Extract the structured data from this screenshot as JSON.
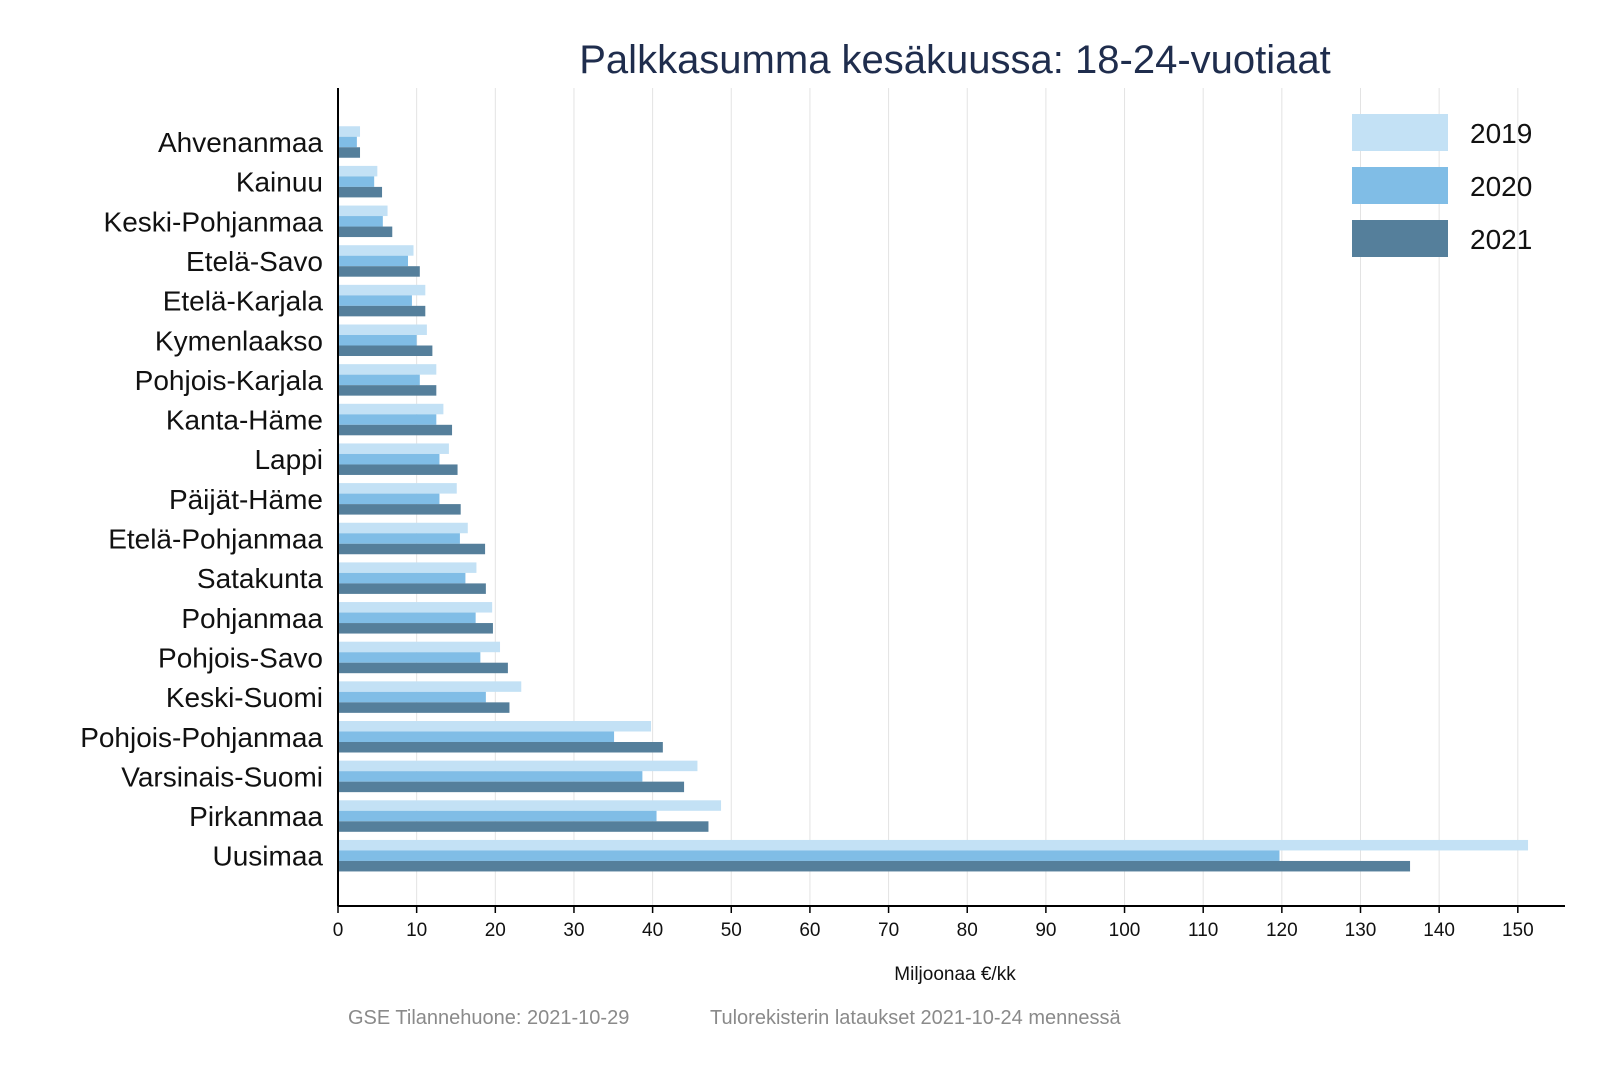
{
  "chart_data": {
    "type": "bar",
    "orientation": "horizontal",
    "title": "Palkkasumma kesäkuussa: 18-24-vuotiaat",
    "xlabel": "Miljoonaa €/kk",
    "ylabel": "",
    "xlim": [
      0,
      156
    ],
    "xticks": [
      0,
      10,
      20,
      30,
      40,
      50,
      60,
      70,
      80,
      90,
      100,
      110,
      120,
      130,
      140,
      150
    ],
    "grid": "vertical",
    "legend_position": "top-right",
    "categories": [
      "Ahvenanmaa",
      "Kainuu",
      "Keski-Pohjanmaa",
      "Etelä-Savo",
      "Etelä-Karjala",
      "Kymenlaakso",
      "Pohjois-Karjala",
      "Kanta-Häme",
      "Lappi",
      "Päijät-Häme",
      "Etelä-Pohjanmaa",
      "Satakunta",
      "Pohjanmaa",
      "Pohjois-Savo",
      "Keski-Suomi",
      "Pohjois-Pohjanmaa",
      "Varsinais-Suomi",
      "Pirkanmaa",
      "Uusimaa"
    ],
    "series": [
      {
        "name": "2019",
        "color": "#c3e1f5",
        "values": [
          2.8,
          5.0,
          6.3,
          9.6,
          11.1,
          11.3,
          12.5,
          13.4,
          14.1,
          15.1,
          16.5,
          17.6,
          19.6,
          20.6,
          23.3,
          39.8,
          45.7,
          48.7,
          151.3
        ]
      },
      {
        "name": "2020",
        "color": "#80bde6",
        "values": [
          2.4,
          4.6,
          5.7,
          8.9,
          9.4,
          10.0,
          10.4,
          12.5,
          12.9,
          12.9,
          15.5,
          16.2,
          17.5,
          18.1,
          18.8,
          35.1,
          38.7,
          40.5,
          119.7
        ]
      },
      {
        "name": "2021",
        "color": "#557f9b",
        "values": [
          2.8,
          5.6,
          6.9,
          10.4,
          11.1,
          12.0,
          12.5,
          14.5,
          15.2,
          15.6,
          18.7,
          18.8,
          19.7,
          21.6,
          21.8,
          41.3,
          44.0,
          47.1,
          136.3
        ]
      }
    ]
  },
  "footer": {
    "source": "GSE Tilannehuone: 2021-10-29",
    "note": "Tulorekisterin lataukset 2021-10-24 mennessä"
  }
}
